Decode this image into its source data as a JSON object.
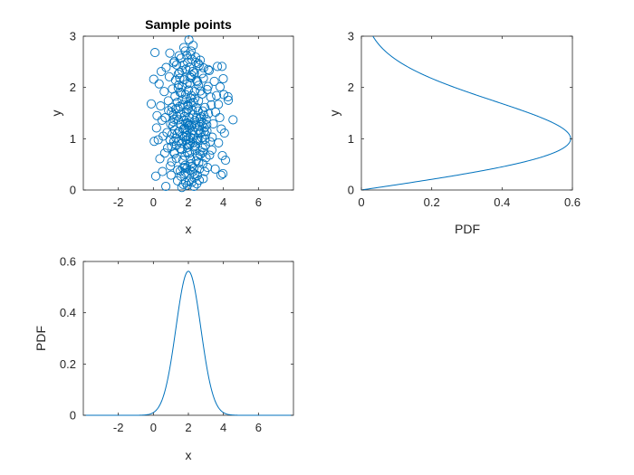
{
  "chart_data": [
    {
      "type": "scatter",
      "title": "Sample points",
      "xlabel": "x",
      "ylabel": "y",
      "xlim": [
        -4,
        8
      ],
      "ylim": [
        0,
        3
      ],
      "xticks": [
        "-2",
        "0",
        "2",
        "4",
        "6"
      ],
      "xtick_values": [
        -2,
        0,
        2,
        4,
        6
      ],
      "yticks": [
        "0",
        "1",
        "2",
        "3"
      ],
      "ytick_values": [
        0,
        1,
        2,
        3
      ],
      "marker": "open-circle",
      "color": "#0072BD",
      "points": [
        [
          1.92,
          1.12
        ],
        [
          2.41,
          0.86
        ],
        [
          1.55,
          1.48
        ],
        [
          2.08,
          2.21
        ],
        [
          2.73,
          1.33
        ],
        [
          1.31,
          0.62
        ],
        [
          2.22,
          0.35
        ],
        [
          1.88,
          1.77
        ],
        [
          2.55,
          0.98
        ],
        [
          1.67,
          1.05
        ],
        [
          2.94,
          1.61
        ],
        [
          1.12,
          1.25
        ],
        [
          2.36,
          1.92
        ],
        [
          1.79,
          0.44
        ],
        [
          2.61,
          2.43
        ],
        [
          1.45,
          2.05
        ],
        [
          2.05,
          0.72
        ],
        [
          2.83,
          0.51
        ],
        [
          1.24,
          1.83
        ],
        [
          2.48,
          1.41
        ],
        [
          1.98,
          1.58
        ],
        [
          1.61,
          0.91
        ],
        [
          2.29,
          1.07
        ],
        [
          1.86,
          2.36
        ],
        [
          2.67,
          0.69
        ],
        [
          1.39,
          0.39
        ],
        [
          2.14,
          1.69
        ],
        [
          2.91,
          1.21
        ],
        [
          1.73,
          1.36
        ],
        [
          2.52,
          2.11
        ],
        [
          1.17,
          0.95
        ],
        [
          2.33,
          0.24
        ],
        [
          1.94,
          0.83
        ],
        [
          2.78,
          1.87
        ],
        [
          1.51,
          1.63
        ],
        [
          2.19,
          2.55
        ],
        [
          1.68,
          0.58
        ],
        [
          2.44,
          1.28
        ],
        [
          1.03,
          1.52
        ],
        [
          2.63,
          0.41
        ],
        [
          2.01,
          1.95
        ],
        [
          1.83,
          1.18
        ],
        [
          2.97,
          0.87
        ],
        [
          1.42,
          2.26
        ],
        [
          2.27,
          1.47
        ],
        [
          1.76,
          0.31
        ],
        [
          2.58,
          1.74
        ],
        [
          1.29,
          1.01
        ],
        [
          2.12,
          0.61
        ],
        [
          2.86,
          2.18
        ],
        [
          1.59,
          1.89
        ],
        [
          2.39,
          0.77
        ],
        [
          1.91,
          2.62
        ],
        [
          2.71,
          1.11
        ],
        [
          1.35,
          1.44
        ],
        [
          2.04,
          0.17
        ],
        [
          1.64,
          2.01
        ],
        [
          2.47,
          0.96
        ],
        [
          1.87,
          1.31
        ],
        [
          2.82,
          1.54
        ],
        [
          1.21,
          0.71
        ],
        [
          2.25,
          2.31
        ],
        [
          1.97,
          1.66
        ],
        [
          2.59,
          0.53
        ],
        [
          1.48,
          1.14
        ],
        [
          2.17,
          1.84
        ],
        [
          2.93,
          0.36
        ],
        [
          1.71,
          2.44
        ],
        [
          2.35,
          1.23
        ],
        [
          1.09,
          1.97
        ],
        [
          2.66,
          1.39
        ],
        [
          1.81,
          0.48
        ],
        [
          2.09,
          2.08
        ],
        [
          2.51,
          0.66
        ],
        [
          1.37,
          1.71
        ],
        [
          2.76,
          2.27
        ],
        [
          1.93,
          0.89
        ],
        [
          2.21,
          1.56
        ],
        [
          1.57,
          0.27
        ],
        [
          2.43,
          2.49
        ],
        [
          1.78,
          1.03
        ],
        [
          2.99,
          1.08
        ],
        [
          1.27,
          2.14
        ],
        [
          2.31,
          0.43
        ],
        [
          1.99,
          1.26
        ],
        [
          2.69,
          1.93
        ],
        [
          1.53,
          0.81
        ],
        [
          2.15,
          2.71
        ],
        [
          2.84,
          0.73
        ],
        [
          1.41,
          1.59
        ],
        [
          2.37,
          1.79
        ],
        [
          1.85,
          0.14
        ],
        [
          2.57,
          1.17
        ],
        [
          1.19,
          1.38
        ],
        [
          2.07,
          2.39
        ],
        [
          1.66,
          1.76
        ],
        [
          2.88,
          1.46
        ],
        [
          2.26,
          0.92
        ],
        [
          1.49,
          2.29
        ],
        [
          2.45,
          0.57
        ],
        [
          0.95,
          0.98
        ],
        [
          3.05,
          1.27
        ],
        [
          1.05,
          0.55
        ],
        [
          3.12,
          2.02
        ],
        [
          0.85,
          1.74
        ],
        [
          3.21,
          0.68
        ],
        [
          1.15,
          2.48
        ],
        [
          3.15,
          1.49
        ],
        [
          0.78,
          1.12
        ],
        [
          3.28,
          1.81
        ],
        [
          1.01,
          0.29
        ],
        [
          3.09,
          0.44
        ],
        [
          0.68,
          1.41
        ],
        [
          3.36,
          1.03
        ],
        [
          0.91,
          2.21
        ],
        [
          3.19,
          2.33
        ],
        [
          1.07,
          1.61
        ],
        [
          3.01,
          0.63
        ],
        [
          0.81,
          0.82
        ],
        [
          3.31,
          1.66
        ],
        [
          0.62,
          1.92
        ],
        [
          3.42,
          1.29
        ],
        [
          0.97,
          0.47
        ],
        [
          3.24,
          0.94
        ],
        [
          0.73,
          2.39
        ],
        [
          3.48,
          2.12
        ],
        [
          1.13,
          1.33
        ],
        [
          3.07,
          1.96
        ],
        [
          0.56,
          1.05
        ],
        [
          3.55,
          1.52
        ],
        [
          0.87,
          1.55
        ],
        [
          3.34,
          0.78
        ],
        [
          0.65,
          0.72
        ],
        [
          3.61,
          1.84
        ],
        [
          0.49,
          1.36
        ],
        [
          3.66,
          2.41
        ],
        [
          0.41,
          1.64
        ],
        [
          3.72,
          0.92
        ],
        [
          0.33,
          2.07
        ],
        [
          3.79,
          1.41
        ],
        [
          0.52,
          0.36
        ],
        [
          3.53,
          0.41
        ],
        [
          0.28,
          0.98
        ],
        [
          3.88,
          1.19
        ],
        [
          0.45,
          2.31
        ],
        [
          3.81,
          2.01
        ],
        [
          0.21,
          1.45
        ],
        [
          3.94,
          0.67
        ],
        [
          0.37,
          0.61
        ],
        [
          3.71,
          1.67
        ],
        [
          1.63,
          0.05
        ],
        [
          2.32,
          0.07
        ],
        [
          1.71,
          0.11
        ],
        [
          2.48,
          0.12
        ],
        [
          1.94,
          0.09
        ],
        [
          2.19,
          0.15
        ],
        [
          0.71,
          0.07
        ],
        [
          2.62,
          0.19
        ],
        [
          1.38,
          0.18
        ],
        [
          2.85,
          0.22
        ],
        [
          1.82,
          2.71
        ],
        [
          2.12,
          2.64
        ],
        [
          1.57,
          2.57
        ],
        [
          2.42,
          2.59
        ],
        [
          1.96,
          2.49
        ],
        [
          2.68,
          2.53
        ],
        [
          1.33,
          2.44
        ],
        [
          2.87,
          2.38
        ],
        [
          0.94,
          2.67
        ],
        [
          1.74,
          2.78
        ],
        [
          2.27,
          2.82
        ],
        [
          2.56,
          2.47
        ],
        [
          1.47,
          2.62
        ],
        [
          3.13,
          2.35
        ],
        [
          2.03,
          2.93
        ],
        [
          1.21,
          2.51
        ],
        [
          -0.12,
          1.68
        ],
        [
          0.05,
          0.95
        ],
        [
          4.02,
          1.86
        ],
        [
          4.28,
          1.75
        ],
        [
          4.55,
          1.37
        ],
        [
          4.12,
          0.58
        ],
        [
          3.97,
          0.32
        ],
        [
          4.26,
          1.82
        ],
        [
          0.09,
          2.68
        ],
        [
          0.14,
          0.27
        ],
        [
          3.92,
          2.41
        ],
        [
          0.18,
          1.21
        ],
        [
          3.86,
          0.29
        ],
        [
          4.06,
          1.11
        ],
        [
          0.02,
          2.16
        ],
        [
          3.99,
          2.17
        ],
        [
          1.89,
          1.52
        ],
        [
          2.11,
          1.03
        ],
        [
          1.95,
          0.73
        ],
        [
          2.04,
          1.41
        ],
        [
          2.16,
          0.51
        ],
        [
          1.84,
          1.86
        ],
        [
          2.07,
          1.27
        ],
        [
          1.93,
          2.07
        ],
        [
          2.02,
          0.88
        ],
        [
          1.98,
          1.63
        ],
        [
          2.13,
          1.79
        ],
        [
          1.86,
          0.97
        ],
        [
          2.24,
          1.16
        ],
        [
          1.76,
          1.43
        ],
        [
          2.18,
          2.24
        ],
        [
          1.81,
          0.66
        ],
        [
          2.29,
          1.71
        ],
        [
          1.72,
          1.19
        ],
        [
          2.35,
          0.84
        ],
        [
          1.69,
          1.67
        ],
        [
          2.38,
          1.36
        ],
        [
          1.62,
          0.79
        ],
        [
          2.46,
          1.61
        ],
        [
          1.58,
          1.27
        ],
        [
          2.53,
          1.01
        ],
        [
          1.52,
          1.91
        ],
        [
          2.56,
          1.54
        ],
        [
          1.46,
          0.96
        ],
        [
          2.62,
          1.24
        ],
        [
          1.43,
          1.37
        ],
        [
          2.65,
          0.76
        ],
        [
          1.36,
          1.09
        ],
        [
          2.72,
          1.43
        ],
        [
          1.32,
          0.87
        ],
        [
          2.77,
          1.02
        ],
        [
          1.28,
          1.58
        ],
        [
          2.81,
          0.82
        ],
        [
          1.23,
          1.17
        ],
        [
          2.85,
          1.31
        ],
        [
          1.18,
          0.74
        ],
        [
          2.9,
          1.14
        ],
        [
          1.14,
          1.47
        ],
        [
          2.95,
          0.99
        ],
        [
          1.08,
          1.09
        ],
        [
          3.02,
          1.38
        ],
        [
          1.04,
          0.85
        ],
        [
          3.06,
          1.15
        ],
        [
          0.99,
          1.29
        ],
        [
          1.91,
          0.42
        ],
        [
          2.09,
          0.39
        ],
        [
          1.84,
          0.34
        ],
        [
          2.21,
          0.46
        ],
        [
          1.68,
          0.43
        ],
        [
          2.37,
          0.31
        ],
        [
          1.54,
          0.37
        ],
        [
          2.51,
          0.28
        ],
        [
          1.77,
          2.15
        ],
        [
          2.15,
          2.19
        ],
        [
          1.64,
          2.33
        ],
        [
          2.34,
          2.28
        ],
        [
          1.51,
          2.18
        ],
        [
          2.47,
          2.13
        ],
        [
          1.42,
          1.99
        ],
        [
          2.58,
          2.04
        ],
        [
          2.0,
          1.0
        ],
        [
          2.05,
          1.21
        ],
        [
          1.95,
          1.31
        ],
        [
          2.1,
          0.91
        ],
        [
          1.9,
          1.06
        ],
        [
          2.2,
          1.26
        ],
        [
          1.8,
          1.21
        ],
        [
          2.25,
          1.01
        ]
      ]
    },
    {
      "type": "line",
      "title": "",
      "xlabel": "PDF",
      "ylabel": "y",
      "xlim": [
        0,
        0.6
      ],
      "ylim": [
        0,
        3
      ],
      "xticks": [
        "0",
        "0.2",
        "0.4",
        "0.6"
      ],
      "xtick_values": [
        0,
        0.2,
        0.4,
        0.6
      ],
      "yticks": [
        "0",
        "1",
        "2",
        "3"
      ],
      "ytick_values": [
        0,
        1,
        2,
        3
      ],
      "color": "#0072BD",
      "curve": {
        "kind": "pdf-of-y",
        "peak_pdf": 0.595,
        "mode_y": 1.0,
        "support": [
          0,
          3
        ]
      }
    },
    {
      "type": "line",
      "title": "",
      "xlabel": "x",
      "ylabel": "PDF",
      "xlim": [
        -4,
        8
      ],
      "ylim": [
        0,
        0.6
      ],
      "xticks": [
        "-2",
        "0",
        "2",
        "4",
        "6"
      ],
      "xtick_values": [
        -2,
        0,
        2,
        4,
        6
      ],
      "yticks": [
        "0",
        "0.2",
        "0.4",
        "0.6"
      ],
      "ytick_values": [
        0,
        0.2,
        0.4,
        0.6
      ],
      "color": "#0072BD",
      "curve": {
        "kind": "gaussian",
        "mean": 2.0,
        "sigma": 0.71,
        "peak_pdf": 0.562
      }
    }
  ]
}
